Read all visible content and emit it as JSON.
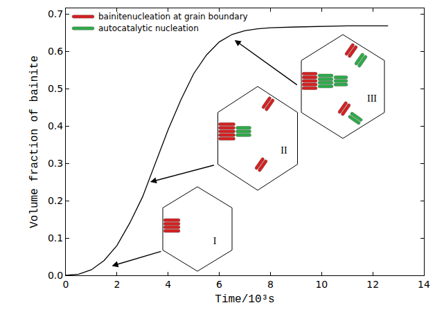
{
  "chart_data": {
    "type": "line",
    "xlabel": "Time/10³s",
    "ylabel": "Volume fraction of bainite",
    "x": [
      0,
      0.5,
      1,
      1.5,
      2,
      2.5,
      3,
      3.5,
      4,
      4.5,
      5,
      5.5,
      6,
      6.5,
      7,
      7.5,
      8,
      9,
      10,
      11,
      12,
      12.6
    ],
    "series": [
      {
        "color": "#000000",
        "values": [
          0,
          0.003,
          0.015,
          0.04,
          0.08,
          0.14,
          0.21,
          0.3,
          0.39,
          0.47,
          0.54,
          0.59,
          0.625,
          0.645,
          0.655,
          0.66,
          0.663,
          0.665,
          0.667,
          0.668,
          0.668,
          0.668
        ]
      }
    ],
    "xlim": [
      0,
      14
    ],
    "ylim": [
      0,
      0.715
    ],
    "xticks": [
      0,
      2,
      4,
      6,
      8,
      10,
      12,
      14
    ],
    "yticks": [
      {
        "value": 0,
        "label": "0.0"
      },
      0.1,
      0.2,
      0.3,
      0.4,
      0.5,
      0.6,
      0.7
    ],
    "grid": false,
    "legend_entries": [
      {
        "text": "bainitenucleation at grain boundary",
        "color": "#d42020"
      },
      {
        "text": "autocatalytic nucleation",
        "color": "#2eaa4a"
      }
    ],
    "annotations": [
      {
        "text": "I",
        "x": 1.8,
        "y": 0.025
      },
      {
        "text": "II",
        "x": 3.3,
        "y": 0.25
      },
      {
        "text": "III",
        "x": 6.6,
        "y": 0.63
      }
    ]
  }
}
